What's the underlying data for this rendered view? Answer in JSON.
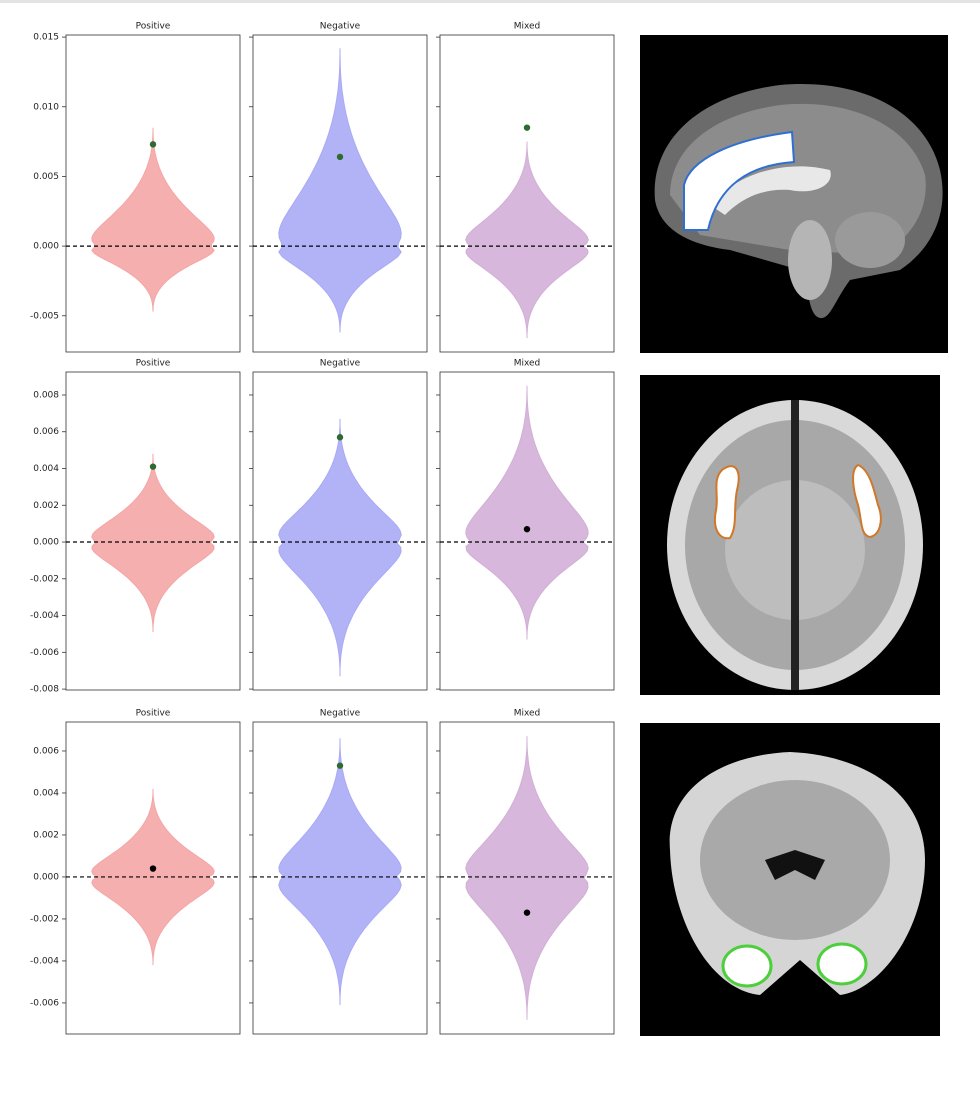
{
  "chart_data": [
    {
      "type": "violin",
      "ylim": [
        -0.0076,
        0.01515
      ],
      "yticks": [
        {
          "value": -0.005,
          "label": "-0.005"
        },
        {
          "value": 0,
          "label": "0.000"
        },
        {
          "value": 0.005,
          "label": "0.005"
        },
        {
          "value": 0.01,
          "label": "0.010"
        },
        {
          "value": 0.015,
          "label": "0.015"
        }
      ],
      "reference": 0,
      "panels": [
        {
          "title": "Positive",
          "color": "#f4a6a6",
          "extent": [
            -0.0047,
            0.0085
          ],
          "point": 0.0073,
          "point_color": "#2e6b2e"
        },
        {
          "title": "Negative",
          "color": "#aaaaf6",
          "extent": [
            -0.0062,
            0.0142
          ],
          "point": 0.0064,
          "point_color": "#2e6b2e"
        },
        {
          "title": "Mixed",
          "color": "#d3afd7",
          "extent": [
            -0.0066,
            0.0075
          ],
          "point": 0.0085,
          "point_color": "#2e6b2e"
        }
      ]
    },
    {
      "type": "violin",
      "ylim": [
        -0.00805,
        0.00925
      ],
      "yticks": [
        {
          "value": -0.008,
          "label": "-0.008"
        },
        {
          "value": -0.006,
          "label": "-0.006"
        },
        {
          "value": -0.004,
          "label": "-0.004"
        },
        {
          "value": -0.002,
          "label": "-0.002"
        },
        {
          "value": 0,
          "label": "0.000"
        },
        {
          "value": 0.002,
          "label": "0.002"
        },
        {
          "value": 0.004,
          "label": "0.004"
        },
        {
          "value": 0.006,
          "label": "0.006"
        },
        {
          "value": 0.008,
          "label": "0.008"
        }
      ],
      "reference": 0,
      "panels": [
        {
          "title": "Positive",
          "color": "#f4a6a6",
          "extent": [
            -0.0049,
            0.0048
          ],
          "point": 0.0041,
          "point_color": "#2e6b2e"
        },
        {
          "title": "Negative",
          "color": "#aaaaf6",
          "extent": [
            -0.0073,
            0.0067
          ],
          "point": 0.0057,
          "point_color": "#2e6b2e"
        },
        {
          "title": "Mixed",
          "color": "#d3afd7",
          "extent": [
            -0.0053,
            0.0085
          ],
          "point": 0.0007,
          "point_color": "#000000"
        }
      ]
    },
    {
      "type": "violin",
      "ylim": [
        -0.00748,
        0.00738
      ],
      "yticks": [
        {
          "value": -0.006,
          "label": "-0.006"
        },
        {
          "value": -0.004,
          "label": "-0.004"
        },
        {
          "value": -0.002,
          "label": "-0.002"
        },
        {
          "value": 0,
          "label": "0.000"
        },
        {
          "value": 0.002,
          "label": "0.002"
        },
        {
          "value": 0.004,
          "label": "0.004"
        },
        {
          "value": 0.006,
          "label": "0.006"
        }
      ],
      "reference": 0,
      "panels": [
        {
          "title": "Positive",
          "color": "#f4a6a6",
          "extent": [
            -0.0042,
            0.0042
          ],
          "point": 0.0004,
          "point_color": "#000000"
        },
        {
          "title": "Negative",
          "color": "#aaaaf6",
          "extent": [
            -0.0061,
            0.0066
          ],
          "point": 0.0053,
          "point_color": "#2e6b2e"
        },
        {
          "title": "Mixed",
          "color": "#d3afd7",
          "extent": [
            -0.0068,
            0.0067
          ],
          "point": -0.0017,
          "point_color": "#000000"
        }
      ]
    }
  ]
}
